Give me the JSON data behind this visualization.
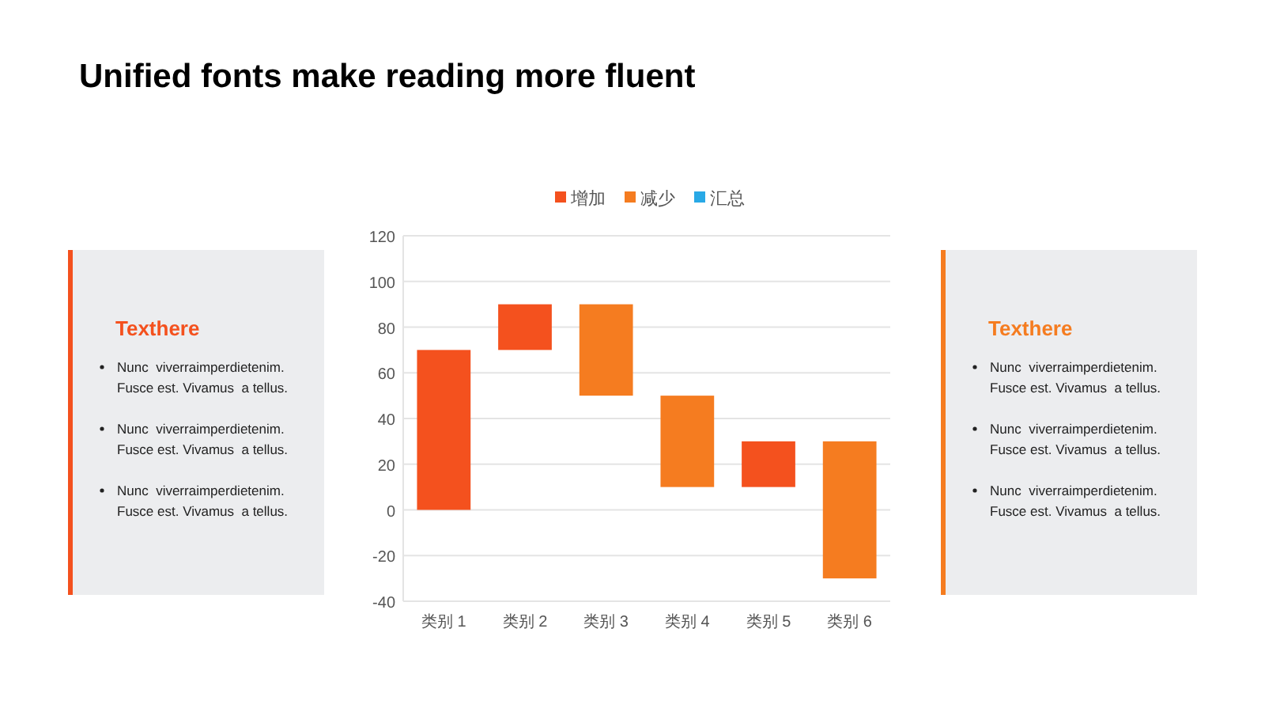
{
  "chart_data": [
    {
      "type": "other",
      "title": "Texthere",
      "color": "#f4511e",
      "annotations": [
        "Nunc  viverraimperdietenim.\nFusce est. Vivamus  a tellus.",
        "Nunc  viverraimperdietenim.\nFusce est. Vivamus  a tellus.",
        "Nunc  viverraimperdietenim.\nFusce est. Vivamus  a tellus."
      ]
    },
    {
      "type": "bar",
      "title": "Unified fonts make reading more fluent",
      "categories": [
        "类别 1",
        "类别 2",
        "类别 3",
        "类别 4",
        "类别 5",
        "类别 6"
      ],
      "stacked": true,
      "series": [
        {
          "name": "增加",
          "color": "#f4511e",
          "values": [
            70,
            20,
            null,
            null,
            20,
            null
          ],
          "base": [
            0,
            70,
            null,
            null,
            10,
            null
          ]
        },
        {
          "name": "减少",
          "color": "#f57c20",
          "values": [
            null,
            null,
            -40,
            -40,
            null,
            -60
          ],
          "base": [
            null,
            null,
            90,
            50,
            null,
            30
          ]
        },
        {
          "name": "汇总",
          "color": "#29a9e6",
          "values": [
            null,
            null,
            null,
            null,
            null,
            null
          ],
          "base": [
            null,
            null,
            null,
            null,
            null,
            null
          ]
        }
      ],
      "ylim": [
        -40,
        120
      ],
      "yticks": [
        -40,
        -20,
        0,
        20,
        40,
        60,
        80,
        100,
        120
      ],
      "grid": "y",
      "legend": "top"
    },
    {
      "type": "other",
      "title": "Texthere",
      "color": "#f57c20",
      "annotations": [
        "Nunc  viverraimperdietenim.\nFusce est. Vivamus  a tellus.",
        "Nunc  viverraimperdietenim.\nFusce est. Vivamus  a tellus.",
        "Nunc  viverraimperdietenim.\nFusce est. Vivamus  a tellus."
      ]
    }
  ]
}
